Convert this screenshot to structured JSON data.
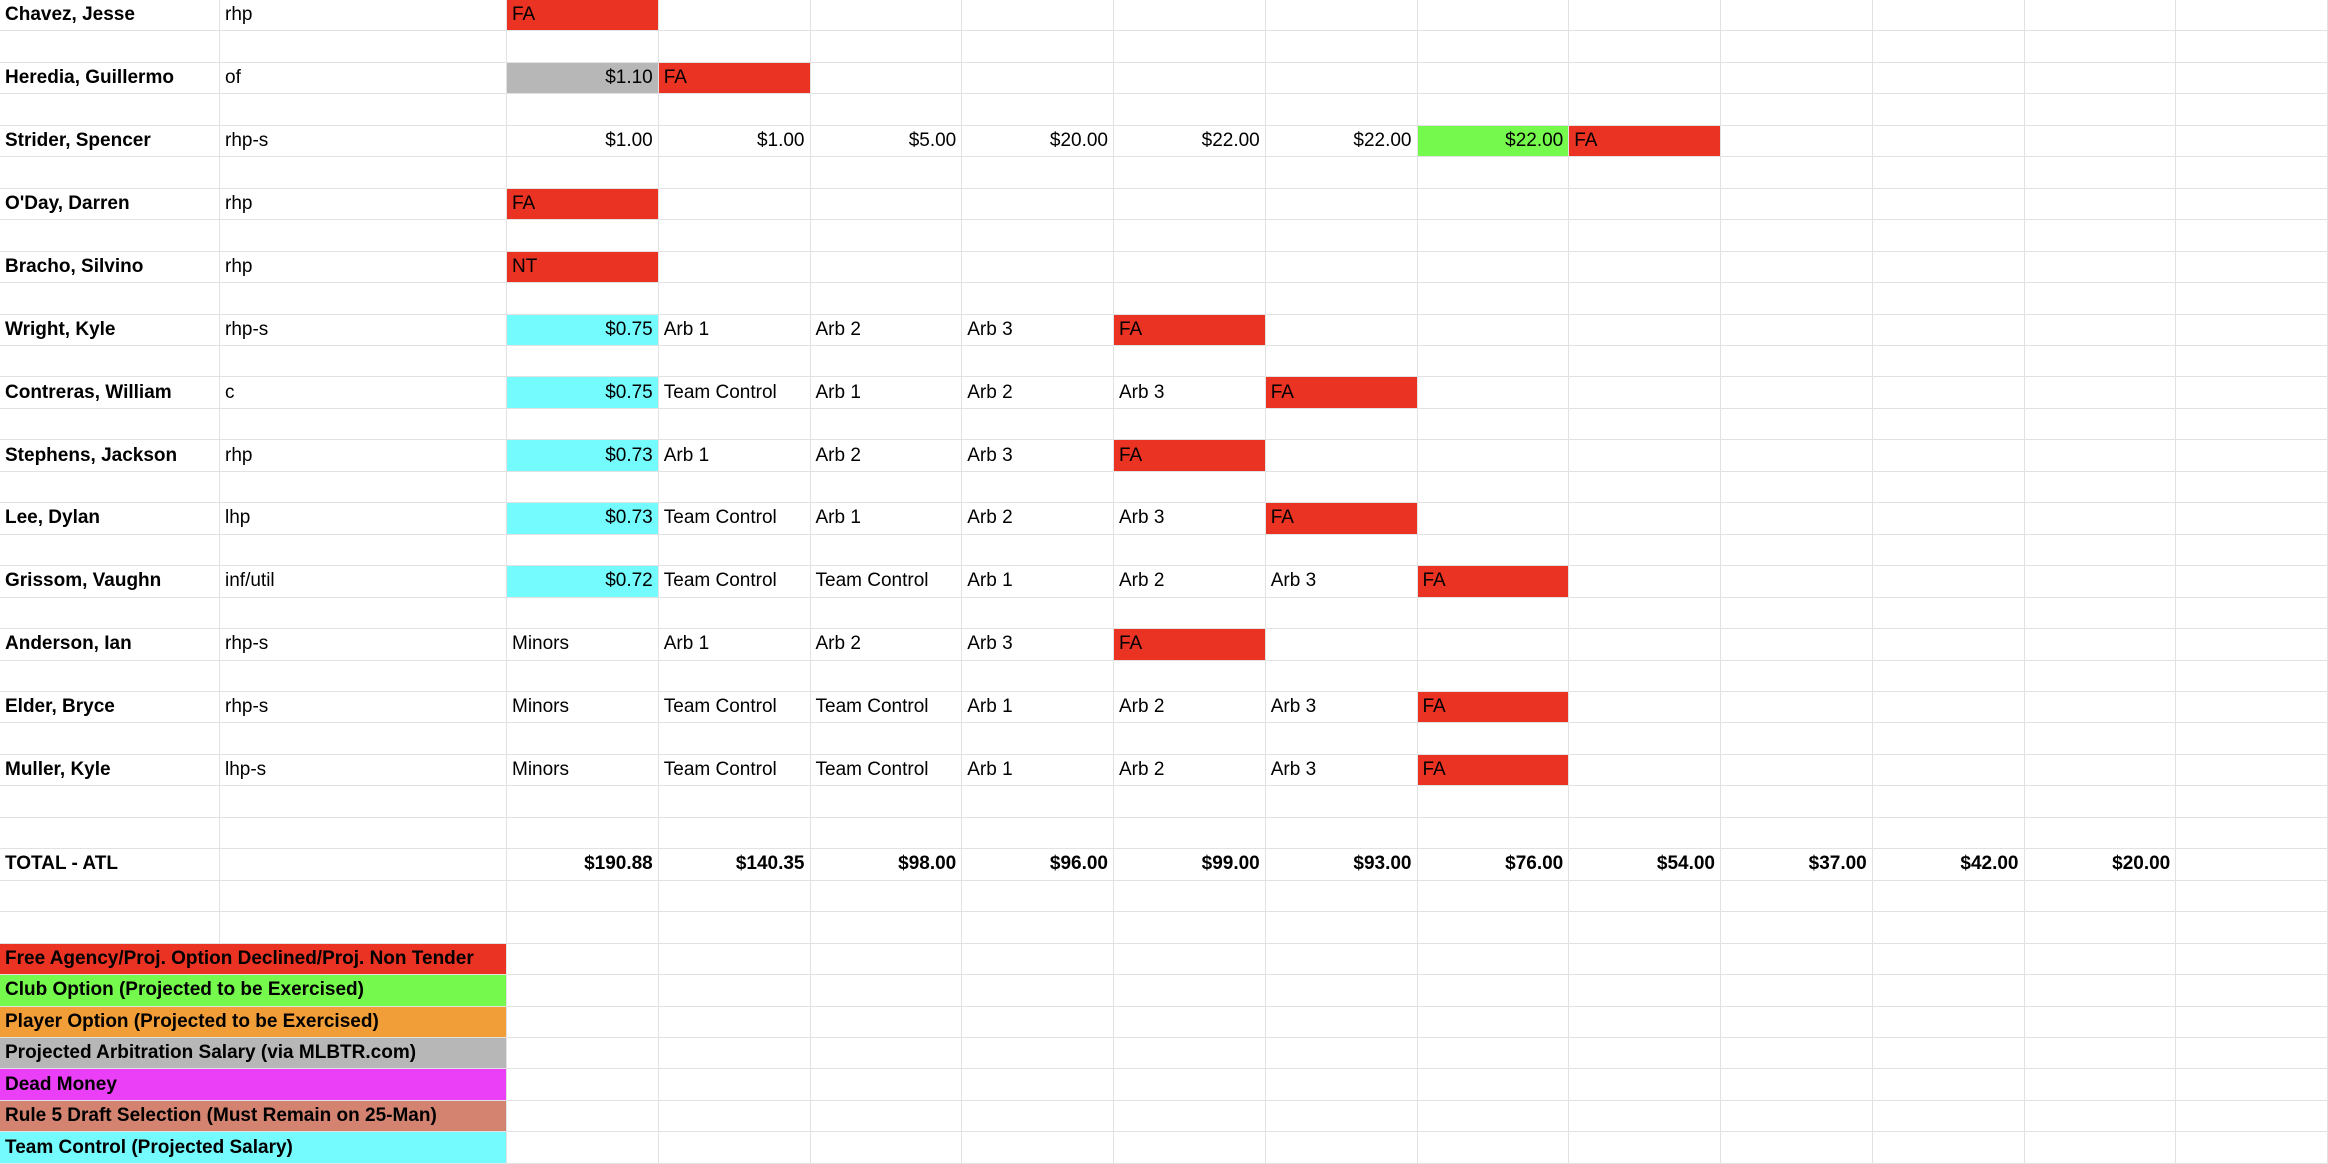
{
  "colors": {
    "fa": "#ea3323",
    "club": "#75f94c",
    "player_option": "#f19e38",
    "arb": "#b7b7b7",
    "dead": "#ea3ff7",
    "rule5": "#d38370",
    "tc": "#73fbfd"
  },
  "players": [
    {
      "name": "Chavez, Jesse",
      "pos": "rhp",
      "years": [
        {
          "v": "FA",
          "s": "fa"
        }
      ]
    },
    {
      "name": "Heredia, Guillermo",
      "pos": "of",
      "years": [
        {
          "v": "$1.10",
          "s": "arb"
        },
        {
          "v": "FA",
          "s": "fa"
        }
      ]
    },
    {
      "name": "Strider, Spencer",
      "pos": "rhp-s",
      "years": [
        {
          "v": "$1.00"
        },
        {
          "v": "$1.00"
        },
        {
          "v": "$5.00"
        },
        {
          "v": "$20.00"
        },
        {
          "v": "$22.00"
        },
        {
          "v": "$22.00"
        },
        {
          "v": "$22.00",
          "s": "club"
        },
        {
          "v": "FA",
          "s": "fa"
        }
      ]
    },
    {
      "name": "O'Day, Darren",
      "pos": "rhp",
      "years": [
        {
          "v": "FA",
          "s": "fa"
        }
      ]
    },
    {
      "name": "Bracho, Silvino",
      "pos": "rhp",
      "years": [
        {
          "v": "NT",
          "s": "fa"
        }
      ]
    },
    {
      "name": "Wright, Kyle",
      "pos": "rhp-s",
      "years": [
        {
          "v": "$0.75",
          "s": "tc"
        },
        {
          "v": "Arb 1"
        },
        {
          "v": "Arb 2"
        },
        {
          "v": "Arb 3"
        },
        {
          "v": "FA",
          "s": "fa"
        }
      ]
    },
    {
      "name": "Contreras, William",
      "pos": "c",
      "years": [
        {
          "v": "$0.75",
          "s": "tc"
        },
        {
          "v": "Team Control"
        },
        {
          "v": "Arb 1"
        },
        {
          "v": "Arb 2"
        },
        {
          "v": "Arb 3"
        },
        {
          "v": "FA",
          "s": "fa"
        }
      ]
    },
    {
      "name": "Stephens, Jackson",
      "pos": "rhp",
      "years": [
        {
          "v": "$0.73",
          "s": "tc"
        },
        {
          "v": "Arb 1"
        },
        {
          "v": "Arb 2"
        },
        {
          "v": "Arb 3"
        },
        {
          "v": "FA",
          "s": "fa"
        }
      ]
    },
    {
      "name": "Lee, Dylan",
      "pos": "lhp",
      "years": [
        {
          "v": "$0.73",
          "s": "tc"
        },
        {
          "v": "Team Control"
        },
        {
          "v": "Arb 1"
        },
        {
          "v": "Arb 2"
        },
        {
          "v": "Arb 3"
        },
        {
          "v": "FA",
          "s": "fa"
        }
      ]
    },
    {
      "name": "Grissom, Vaughn",
      "pos": "inf/util",
      "years": [
        {
          "v": "$0.72",
          "s": "tc"
        },
        {
          "v": "Team Control"
        },
        {
          "v": "Team Control"
        },
        {
          "v": "Arb 1"
        },
        {
          "v": "Arb 2"
        },
        {
          "v": "Arb 3"
        },
        {
          "v": "FA",
          "s": "fa"
        }
      ]
    },
    {
      "name": "Anderson, Ian",
      "pos": "rhp-s",
      "years": [
        {
          "v": "Minors"
        },
        {
          "v": "Arb 1"
        },
        {
          "v": "Arb 2"
        },
        {
          "v": "Arb 3"
        },
        {
          "v": "FA",
          "s": "fa"
        }
      ]
    },
    {
      "name": "Elder, Bryce",
      "pos": "rhp-s",
      "years": [
        {
          "v": "Minors"
        },
        {
          "v": "Team Control"
        },
        {
          "v": "Team Control"
        },
        {
          "v": "Arb 1"
        },
        {
          "v": "Arb 2"
        },
        {
          "v": "Arb 3"
        },
        {
          "v": "FA",
          "s": "fa"
        }
      ]
    },
    {
      "name": "Muller, Kyle",
      "pos": "lhp-s",
      "years": [
        {
          "v": "Minors"
        },
        {
          "v": "Team Control"
        },
        {
          "v": "Team Control"
        },
        {
          "v": "Arb 1"
        },
        {
          "v": "Arb 2"
        },
        {
          "v": "Arb 3"
        },
        {
          "v": "FA",
          "s": "fa"
        }
      ]
    }
  ],
  "total": {
    "label": "TOTAL - ATL",
    "values": [
      "$190.88",
      "$140.35",
      "$98.00",
      "$96.00",
      "$99.00",
      "$93.00",
      "$76.00",
      "$54.00",
      "$37.00",
      "$42.00",
      "$20.00"
    ]
  },
  "legend": [
    {
      "label": "Free Agency/Proj. Option Declined/Proj. Non Tender",
      "color": "#ea3323"
    },
    {
      "label": "Club Option (Projected to be Exercised)",
      "color": "#75f94c"
    },
    {
      "label": "Player Option (Projected to be Exercised)",
      "color": "#f19e38"
    },
    {
      "label": "Projected Arbitration Salary (via MLBTR.com)",
      "color": "#b7b7b7"
    },
    {
      "label": "Dead Money",
      "color": "#ea3ff7"
    },
    {
      "label": "Rule 5 Draft Selection (Must Remain on 25-Man)",
      "color": "#d38370"
    },
    {
      "label": "Team Control (Projected Salary)",
      "color": "#73fbfd"
    }
  ]
}
